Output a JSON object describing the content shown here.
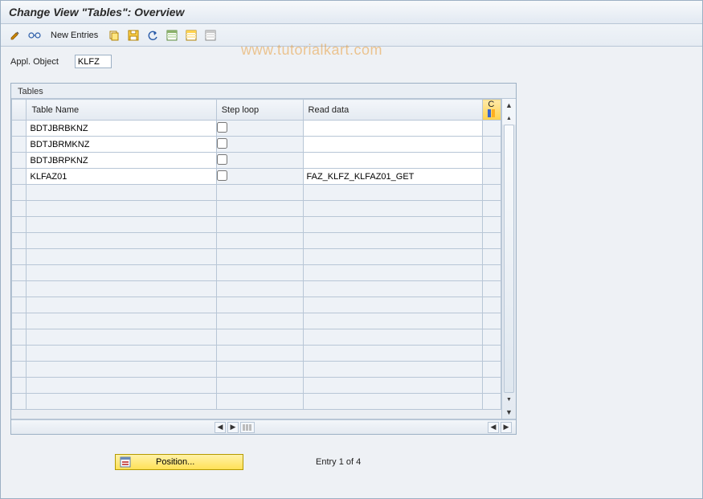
{
  "colors": {
    "window_bg": "#eef1f5",
    "border": "#9cb0c4",
    "header_grad_top": "#f7f9fb",
    "header_grad_bot": "#e2e9f2",
    "accent_yellow_top": "#fff2a8",
    "accent_yellow_bot": "#ffe157",
    "watermark": "rgba(230,140,20,0.45)"
  },
  "title": "Change View \"Tables\": Overview",
  "watermark": "www.tutorialkart.com",
  "toolbar": {
    "new_entries": "New Entries"
  },
  "appl_object": {
    "label": "Appl. Object",
    "value": "KLFZ"
  },
  "panel": {
    "title": "Tables",
    "columns": {
      "table_name": "Table Name",
      "step_loop": "Step loop",
      "read_data": "Read data",
      "last": "C"
    },
    "rows": [
      {
        "table_name": "BDTJBRBKNZ",
        "step_loop": false,
        "read_data": ""
      },
      {
        "table_name": "BDTJBRMKNZ",
        "step_loop": false,
        "read_data": ""
      },
      {
        "table_name": "BDTJBRPKNZ",
        "step_loop": false,
        "read_data": ""
      },
      {
        "table_name": "KLFAZ01",
        "step_loop": false,
        "read_data": "FAZ_KLFZ_KLFAZ01_GET"
      }
    ],
    "empty_rows": 14
  },
  "footer": {
    "position_button": "Position...",
    "entry_text": "Entry 1 of 4"
  }
}
